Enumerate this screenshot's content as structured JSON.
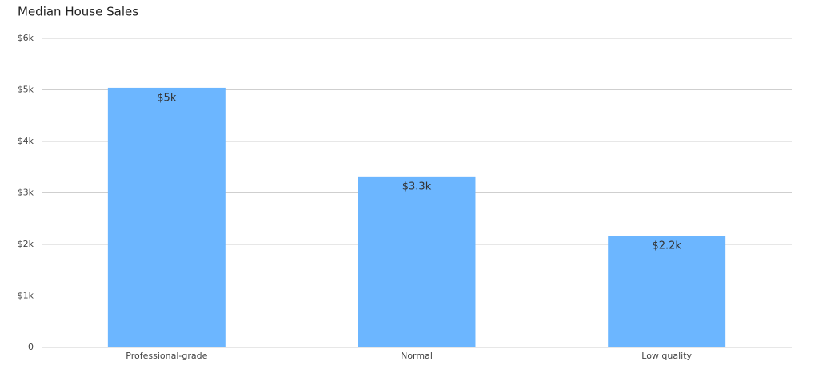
{
  "chart_data": {
    "type": "bar",
    "title": "Median House Sales",
    "categories": [
      "Professional-grade",
      "Normal",
      "Low quality"
    ],
    "values": [
      5040,
      3320,
      2170
    ],
    "value_labels": [
      "$5k",
      "$3.3k",
      "$2.2k"
    ],
    "color": "#6cb6ff",
    "ylim": [
      0,
      6000
    ],
    "yticks": [
      0,
      {
        "value": 1000,
        "label": "$1k"
      },
      {
        "value": 2000,
        "label": "$2k"
      },
      {
        "value": 3000,
        "label": "$3k"
      },
      {
        "value": 4000,
        "label": "$4k"
      },
      {
        "value": 5000,
        "label": "$5k"
      },
      {
        "value": 6000,
        "label": "$6k"
      }
    ],
    "grid": true
  }
}
